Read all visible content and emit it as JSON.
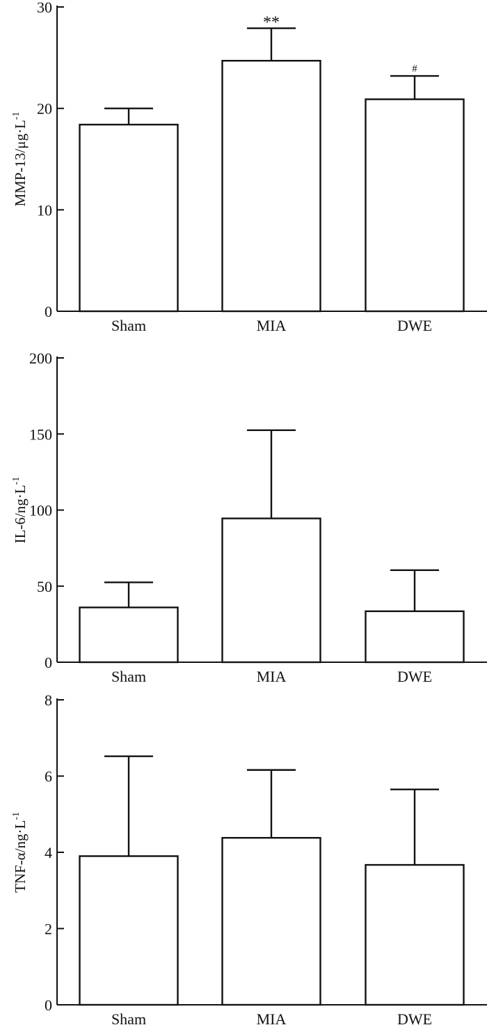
{
  "chart_data": [
    {
      "type": "bar",
      "ylabel": "MMP-13/μg·L",
      "ylabel_exp": "-1",
      "ylim": [
        0,
        30
      ],
      "yticks": [
        0,
        10,
        20,
        30
      ],
      "categories": [
        "Sham",
        "MIA",
        "DWE"
      ],
      "values": [
        18.4,
        24.7,
        20.9
      ],
      "errors": [
        1.6,
        3.2,
        2.3
      ],
      "annotations": [
        "",
        "**",
        "#"
      ]
    },
    {
      "type": "bar",
      "ylabel": "IL-6/ng·L",
      "ylabel_exp": "-1",
      "ylim": [
        0,
        200
      ],
      "yticks": [
        0,
        50,
        100,
        150,
        200
      ],
      "categories": [
        "Sham",
        "MIA",
        "DWE"
      ],
      "values": [
        36,
        94.5,
        33.5
      ],
      "errors": [
        16.5,
        58,
        27
      ],
      "annotations": [
        "",
        "",
        ""
      ]
    },
    {
      "type": "bar",
      "ylabel": "TNF-α/ng·L",
      "ylabel_exp": "-1",
      "ylim": [
        0,
        8
      ],
      "yticks": [
        0,
        2,
        4,
        6,
        8
      ],
      "categories": [
        "Sham",
        "MIA",
        "DWE"
      ],
      "values": [
        3.9,
        4.38,
        3.67
      ],
      "errors": [
        2.62,
        1.78,
        1.98
      ],
      "annotations": [
        "",
        "",
        ""
      ]
    }
  ]
}
